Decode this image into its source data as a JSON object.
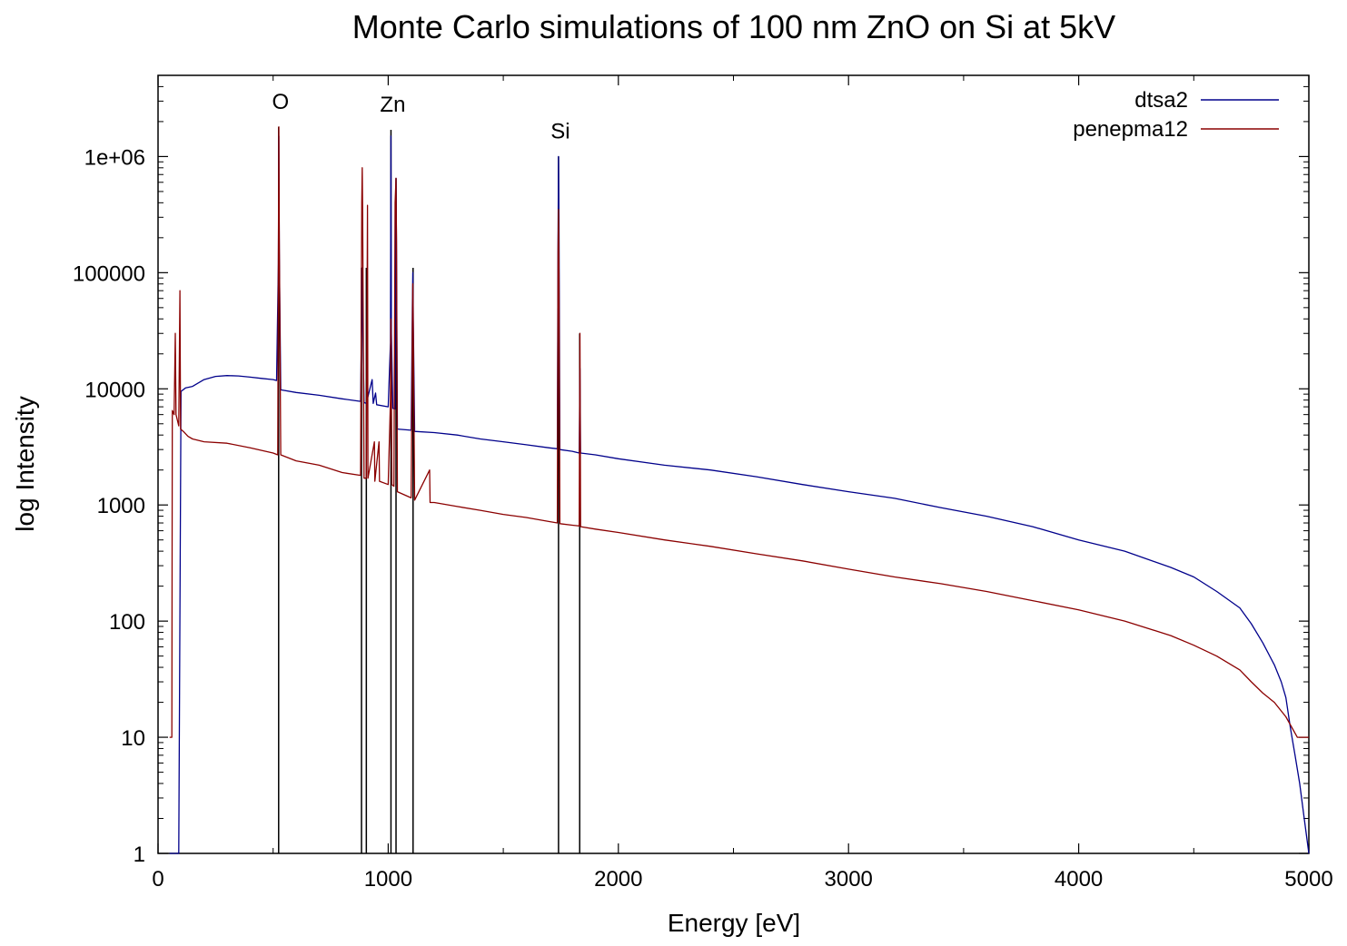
{
  "chart_data": {
    "type": "line",
    "title": "Monte Carlo simulations of 100 nm ZnO on Si at 5kV",
    "xlabel": "Energy [eV]",
    "ylabel": "log Intensity",
    "xlim": [
      0,
      5000
    ],
    "ylim": [
      1,
      5000000
    ],
    "yscale": "log",
    "xticks": [
      "0",
      "1000",
      "2000",
      "3000",
      "4000",
      "5000"
    ],
    "yticks": [
      "1",
      "10",
      "100",
      "1000",
      "10000",
      "100000",
      "1e+06"
    ],
    "legend_position": "top-right",
    "grid": false,
    "series": [
      {
        "name": "dtsa2",
        "color": "#00008b",
        "points": [
          [
            50,
            1
          ],
          [
            60,
            1
          ],
          [
            70,
            1
          ],
          [
            80,
            1
          ],
          [
            90,
            1
          ],
          [
            100,
            9500
          ],
          [
            120,
            10200
          ],
          [
            150,
            10500
          ],
          [
            200,
            12000
          ],
          [
            250,
            12800
          ],
          [
            300,
            13000
          ],
          [
            350,
            12900
          ],
          [
            400,
            12600
          ],
          [
            450,
            12300
          ],
          [
            500,
            12000
          ],
          [
            515,
            11800
          ],
          [
            523,
            120000
          ],
          [
            525,
            1500000
          ],
          [
            527,
            150000
          ],
          [
            533,
            9800
          ],
          [
            600,
            9300
          ],
          [
            700,
            8800
          ],
          [
            800,
            8200
          ],
          [
            880,
            7800
          ],
          [
            885,
            50000
          ],
          [
            887,
            110000
          ],
          [
            889,
            40000
          ],
          [
            895,
            7600
          ],
          [
            905,
            7500
          ],
          [
            930,
            12000
          ],
          [
            935,
            7500
          ],
          [
            945,
            9200
          ],
          [
            950,
            7300
          ],
          [
            1000,
            7000
          ],
          [
            1010,
            25000
          ],
          [
            1012,
            1500000
          ],
          [
            1014,
            30000
          ],
          [
            1020,
            6800
          ],
          [
            1030,
            6700
          ],
          [
            1032,
            200000
          ],
          [
            1034,
            650000
          ],
          [
            1036,
            180000
          ],
          [
            1040,
            4500
          ],
          [
            1100,
            4400
          ],
          [
            1105,
            50000
          ],
          [
            1107,
            100000
          ],
          [
            1109,
            40000
          ],
          [
            1115,
            4300
          ],
          [
            1200,
            4200
          ],
          [
            1300,
            4000
          ],
          [
            1400,
            3700
          ],
          [
            1500,
            3500
          ],
          [
            1600,
            3300
          ],
          [
            1700,
            3100
          ],
          [
            1735,
            3050
          ],
          [
            1738,
            200000
          ],
          [
            1740,
            1000000
          ],
          [
            1742,
            300000
          ],
          [
            1746,
            3000
          ],
          [
            1800,
            2900
          ],
          [
            1830,
            2800
          ],
          [
            1833,
            15000
          ],
          [
            1836,
            2800
          ],
          [
            1900,
            2700
          ],
          [
            2000,
            2500
          ],
          [
            2200,
            2200
          ],
          [
            2400,
            2000
          ],
          [
            2600,
            1750
          ],
          [
            2800,
            1500
          ],
          [
            3000,
            1300
          ],
          [
            3200,
            1140
          ],
          [
            3400,
            950
          ],
          [
            3600,
            800
          ],
          [
            3800,
            650
          ],
          [
            4000,
            500
          ],
          [
            4200,
            400
          ],
          [
            4400,
            290
          ],
          [
            4500,
            240
          ],
          [
            4600,
            180
          ],
          [
            4700,
            130
          ],
          [
            4750,
            95
          ],
          [
            4800,
            65
          ],
          [
            4850,
            42
          ],
          [
            4880,
            30
          ],
          [
            4900,
            22
          ],
          [
            4920,
            12
          ],
          [
            4940,
            7
          ],
          [
            4960,
            4
          ],
          [
            4980,
            2
          ],
          [
            5000,
            1
          ]
        ]
      },
      {
        "name": "penepma12",
        "color": "#8b0000",
        "points": [
          [
            50,
            10
          ],
          [
            60,
            10
          ],
          [
            62,
            6500
          ],
          [
            70,
            6000
          ],
          [
            75,
            30000
          ],
          [
            78,
            6000
          ],
          [
            90,
            4800
          ],
          [
            95,
            70000
          ],
          [
            98,
            4500
          ],
          [
            110,
            4300
          ],
          [
            130,
            3900
          ],
          [
            150,
            3700
          ],
          [
            200,
            3500
          ],
          [
            300,
            3400
          ],
          [
            400,
            3100
          ],
          [
            500,
            2800
          ],
          [
            520,
            2700
          ],
          [
            523,
            150000
          ],
          [
            525,
            1800000
          ],
          [
            527,
            200000
          ],
          [
            533,
            2700
          ],
          [
            600,
            2400
          ],
          [
            700,
            2200
          ],
          [
            800,
            1900
          ],
          [
            880,
            1800
          ],
          [
            885,
            400000
          ],
          [
            887,
            800000
          ],
          [
            889,
            300000
          ],
          [
            895,
            1700
          ],
          [
            905,
            1700
          ],
          [
            910,
            380000
          ],
          [
            912,
            1700
          ],
          [
            940,
            3500
          ],
          [
            942,
            1600
          ],
          [
            960,
            3500
          ],
          [
            962,
            1600
          ],
          [
            1000,
            1500
          ],
          [
            1010,
            8000
          ],
          [
            1012,
            40000
          ],
          [
            1016,
            1500
          ],
          [
            1025,
            1450
          ],
          [
            1030,
            400000
          ],
          [
            1034,
            650000
          ],
          [
            1036,
            200000
          ],
          [
            1040,
            1300
          ],
          [
            1100,
            1150
          ],
          [
            1105,
            30000
          ],
          [
            1107,
            80000
          ],
          [
            1109,
            30000
          ],
          [
            1115,
            1100
          ],
          [
            1180,
            2000
          ],
          [
            1182,
            1050
          ],
          [
            1200,
            1050
          ],
          [
            1300,
            970
          ],
          [
            1400,
            900
          ],
          [
            1500,
            830
          ],
          [
            1600,
            780
          ],
          [
            1700,
            720
          ],
          [
            1735,
            700
          ],
          [
            1738,
            150000
          ],
          [
            1740,
            350000
          ],
          [
            1742,
            100000
          ],
          [
            1746,
            690
          ],
          [
            1800,
            670
          ],
          [
            1830,
            660
          ],
          [
            1833,
            30000
          ],
          [
            1836,
            650
          ],
          [
            1900,
            620
          ],
          [
            2000,
            580
          ],
          [
            2200,
            500
          ],
          [
            2400,
            440
          ],
          [
            2600,
            380
          ],
          [
            2800,
            330
          ],
          [
            3000,
            280
          ],
          [
            3200,
            240
          ],
          [
            3400,
            210
          ],
          [
            3600,
            180
          ],
          [
            3800,
            150
          ],
          [
            4000,
            125
          ],
          [
            4200,
            100
          ],
          [
            4400,
            75
          ],
          [
            4500,
            62
          ],
          [
            4600,
            50
          ],
          [
            4700,
            38
          ],
          [
            4750,
            30
          ],
          [
            4800,
            24
          ],
          [
            4850,
            20
          ],
          [
            4900,
            15
          ],
          [
            4950,
            10
          ],
          [
            5000,
            10
          ]
        ]
      }
    ],
    "markers": [
      {
        "label": "O",
        "x": 524,
        "top": 1800000
      },
      {
        "label": "Zn",
        "x": 1012,
        "top": 1700000
      },
      {
        "label": "Si",
        "x": 1740,
        "top": 1000000
      }
    ],
    "marker_lines": [
      {
        "x": 524,
        "top": 1800000
      },
      {
        "x": 884,
        "top": 110000
      },
      {
        "x": 905,
        "top": 110000
      },
      {
        "x": 1012,
        "top": 1700000
      },
      {
        "x": 1034,
        "top": 650000
      },
      {
        "x": 1108,
        "top": 110000
      },
      {
        "x": 1740,
        "top": 1000000
      },
      {
        "x": 1832,
        "top": 30000
      }
    ]
  }
}
